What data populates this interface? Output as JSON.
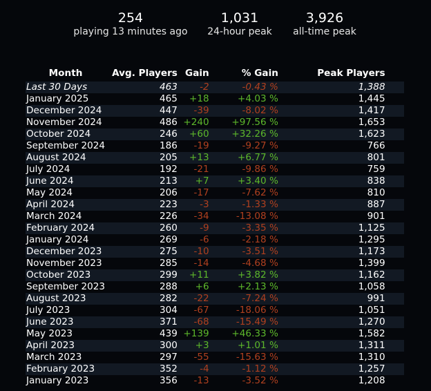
{
  "stats": [
    {
      "value": "254",
      "label": "playing 13 minutes ago"
    },
    {
      "value": "1,031",
      "label": "24-hour peak"
    },
    {
      "value": "3,926",
      "label": "all-time peak"
    }
  ],
  "colors": {
    "positive": "#5db82b",
    "negative": "#b0401f",
    "row_stripe": "#121923",
    "background": "#05070b"
  },
  "table": {
    "headers": [
      "Month",
      "Avg. Players",
      "Gain",
      "% Gain",
      "Peak Players"
    ],
    "rows": [
      [
        "Last 30 Days",
        "463",
        "-2",
        "-0.43 %",
        "1,388"
      ],
      [
        "January 2025",
        "465",
        "+18",
        "+4.03 %",
        "1,445"
      ],
      [
        "December 2024",
        "447",
        "-39",
        "-8.02 %",
        "1,417"
      ],
      [
        "November 2024",
        "486",
        "+240",
        "+97.56 %",
        "1,653"
      ],
      [
        "October 2024",
        "246",
        "+60",
        "+32.26 %",
        "1,623"
      ],
      [
        "September 2024",
        "186",
        "-19",
        "-9.27 %",
        "766"
      ],
      [
        "August 2024",
        "205",
        "+13",
        "+6.77 %",
        "801"
      ],
      [
        "July 2024",
        "192",
        "-21",
        "-9.86 %",
        "759"
      ],
      [
        "June 2024",
        "213",
        "+7",
        "+3.40 %",
        "838"
      ],
      [
        "May 2024",
        "206",
        "-17",
        "-7.62 %",
        "810"
      ],
      [
        "April 2024",
        "223",
        "-3",
        "-1.33 %",
        "887"
      ],
      [
        "March 2024",
        "226",
        "-34",
        "-13.08 %",
        "901"
      ],
      [
        "February 2024",
        "260",
        "-9",
        "-3.35 %",
        "1,125"
      ],
      [
        "January 2024",
        "269",
        "-6",
        "-2.18 %",
        "1,295"
      ],
      [
        "December 2023",
        "275",
        "-10",
        "-3.51 %",
        "1,173"
      ],
      [
        "November 2023",
        "285",
        "-14",
        "-4.68 %",
        "1,399"
      ],
      [
        "October 2023",
        "299",
        "+11",
        "+3.82 %",
        "1,162"
      ],
      [
        "September 2023",
        "288",
        "+6",
        "+2.13 %",
        "1,058"
      ],
      [
        "August 2023",
        "282",
        "-22",
        "-7.24 %",
        "991"
      ],
      [
        "July 2023",
        "304",
        "-67",
        "-18.06 %",
        "1,051"
      ],
      [
        "June 2023",
        "371",
        "-68",
        "-15.49 %",
        "1,270"
      ],
      [
        "May 2023",
        "439",
        "+139",
        "+46.33 %",
        "1,582"
      ],
      [
        "April 2023",
        "300",
        "+3",
        "+1.01 %",
        "1,311"
      ],
      [
        "March 2023",
        "297",
        "-55",
        "-15.63 %",
        "1,310"
      ],
      [
        "February 2023",
        "352",
        "-4",
        "-1.12 %",
        "1,257"
      ],
      [
        "January 2023",
        "356",
        "-13",
        "-3.52 %",
        "1,208"
      ]
    ]
  }
}
